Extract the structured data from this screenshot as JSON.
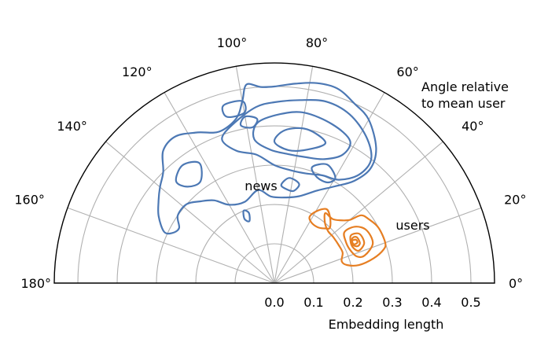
{
  "chart_data": {
    "type": "polar-contour",
    "angle_unit": "degrees",
    "angle_range": [
      0,
      180
    ],
    "radial_range": [
      0,
      0.56
    ],
    "angle_ticks": [
      0,
      20,
      40,
      60,
      80,
      100,
      120,
      140,
      160,
      180
    ],
    "angle_tick_labels": [
      "0°",
      "20°",
      "40°",
      "60°",
      "80°",
      "100°",
      "120°",
      "140°",
      "160°",
      "180°"
    ],
    "radial_ticks": [
      0.0,
      0.1,
      0.2,
      0.3,
      0.4,
      0.5
    ],
    "radial_tick_labels": [
      "0.0",
      "0.1",
      "0.2",
      "0.3",
      "0.4",
      "0.5"
    ],
    "angle_axis_label": "Angle relative\nto mean user",
    "radial_axis_label": "Embedding length",
    "grid": true,
    "series": [
      {
        "name": "news",
        "color": "#4c78b4",
        "contours": [
          [
            [
              0.48,
              60
            ],
            [
              0.5,
              66
            ],
            [
              0.52,
              72
            ],
            [
              0.52,
              78
            ],
            [
              0.51,
              84
            ],
            [
              0.5,
              90
            ],
            [
              0.5,
              94
            ],
            [
              0.51,
              98
            ],
            [
              0.47,
              100
            ],
            [
              0.43,
              103
            ],
            [
              0.41,
              110
            ],
            [
              0.43,
              117
            ],
            [
              0.45,
              124
            ],
            [
              0.44,
              130
            ],
            [
              0.4,
              135
            ],
            [
              0.38,
              140
            ],
            [
              0.36,
              145
            ],
            [
              0.34,
              150
            ],
            [
              0.31,
              155
            ],
            [
              0.29,
              154
            ],
            [
              0.28,
              150
            ],
            [
              0.3,
              145
            ],
            [
              0.3,
              138
            ],
            [
              0.28,
              132
            ],
            [
              0.26,
              126
            ],
            [
              0.23,
              120
            ],
            [
              0.22,
              110
            ],
            [
              0.24,
              100
            ],
            [
              0.22,
              92
            ],
            [
              0.22,
              82
            ],
            [
              0.23,
              74
            ],
            [
              0.26,
              65
            ],
            [
              0.29,
              58
            ],
            [
              0.33,
              52
            ],
            [
              0.38,
              50
            ],
            [
              0.43,
              53
            ],
            [
              0.48,
              60
            ]
          ],
          [
            [
              0.44,
              58
            ],
            [
              0.47,
              66
            ],
            [
              0.48,
              74
            ],
            [
              0.47,
              82
            ],
            [
              0.46,
              90
            ],
            [
              0.45,
              96
            ],
            [
              0.42,
              104
            ],
            [
              0.39,
              110
            ],
            [
              0.35,
              106
            ],
            [
              0.33,
              98
            ],
            [
              0.3,
              90
            ],
            [
              0.29,
              82
            ],
            [
              0.29,
              74
            ],
            [
              0.3,
              66
            ],
            [
              0.31,
              58
            ],
            [
              0.35,
              52
            ],
            [
              0.4,
              52
            ],
            [
              0.44,
              58
            ]
          ],
          [
            [
              0.41,
              62
            ],
            [
              0.43,
              70
            ],
            [
              0.44,
              80
            ],
            [
              0.43,
              88
            ],
            [
              0.41,
              96
            ],
            [
              0.37,
              98
            ],
            [
              0.34,
              92
            ],
            [
              0.33,
              84
            ],
            [
              0.33,
              76
            ],
            [
              0.34,
              68
            ],
            [
              0.37,
              62
            ],
            [
              0.41,
              62
            ]
          ],
          [
            [
              0.38,
              70
            ],
            [
              0.4,
              78
            ],
            [
              0.39,
              86
            ],
            [
              0.36,
              90
            ],
            [
              0.34,
              84
            ],
            [
              0.35,
              76
            ],
            [
              0.38,
              70
            ]
          ],
          [
            [
              0.47,
              100
            ],
            [
              0.47,
              106
            ],
            [
              0.44,
              106
            ],
            [
              0.44,
              100
            ],
            [
              0.47,
              100
            ]
          ],
          [
            [
              0.42,
              96
            ],
            [
              0.43,
              100
            ],
            [
              0.41,
              102
            ],
            [
              0.4,
              98
            ],
            [
              0.42,
              96
            ]
          ],
          [
            [
              0.31,
              60
            ],
            [
              0.33,
              66
            ],
            [
              0.31,
              72
            ],
            [
              0.29,
              68
            ],
            [
              0.29,
              62
            ],
            [
              0.31,
              60
            ]
          ],
          [
            [
              0.26,
              76
            ],
            [
              0.27,
              82
            ],
            [
              0.25,
              86
            ],
            [
              0.24,
              82
            ],
            [
              0.24,
              78
            ],
            [
              0.26,
              76
            ]
          ],
          [
            [
              0.36,
              122
            ],
            [
              0.38,
              128
            ],
            [
              0.36,
              134
            ],
            [
              0.33,
              132
            ],
            [
              0.32,
              126
            ],
            [
              0.36,
              122
            ]
          ],
          [
            [
              0.19,
              110
            ],
            [
              0.2,
              113
            ],
            [
              0.18,
              115
            ],
            [
              0.17,
              112
            ],
            [
              0.19,
              110
            ]
          ]
        ]
      },
      {
        "name": "users",
        "color": "#e67e22",
        "contours": [
          [
            [
              0.2,
              45
            ],
            [
              0.22,
              50
            ],
            [
              0.23,
              55
            ],
            [
              0.21,
              60
            ],
            [
              0.19,
              62
            ],
            [
              0.18,
              58
            ],
            [
              0.18,
              52
            ],
            [
              0.19,
              47
            ],
            [
              0.2,
              45
            ]
          ],
          [
            [
              0.3,
              20
            ],
            [
              0.3,
              28
            ],
            [
              0.29,
              34
            ],
            [
              0.28,
              38
            ],
            [
              0.25,
              40
            ],
            [
              0.23,
              44
            ],
            [
              0.22,
              48
            ],
            [
              0.22,
              54
            ],
            [
              0.2,
              50
            ],
            [
              0.19,
              44
            ],
            [
              0.19,
              38
            ],
            [
              0.19,
              30
            ],
            [
              0.19,
              24
            ],
            [
              0.18,
              18
            ],
            [
              0.19,
              14
            ],
            [
              0.22,
              12
            ],
            [
              0.26,
              14
            ],
            [
              0.29,
              17
            ],
            [
              0.3,
              20
            ]
          ],
          [
            [
              0.27,
              22
            ],
            [
              0.27,
              30
            ],
            [
              0.25,
              35
            ],
            [
              0.22,
              36
            ],
            [
              0.21,
              30
            ],
            [
              0.21,
              24
            ],
            [
              0.22,
              18
            ],
            [
              0.24,
              17
            ],
            [
              0.27,
              22
            ]
          ],
          [
            [
              0.25,
              24
            ],
            [
              0.25,
              30
            ],
            [
              0.23,
              32
            ],
            [
              0.22,
              28
            ],
            [
              0.22,
              24
            ],
            [
              0.23,
              21
            ],
            [
              0.25,
              24
            ]
          ],
          [
            [
              0.24,
              25
            ],
            [
              0.24,
              29
            ],
            [
              0.23,
              30
            ],
            [
              0.22,
              27
            ],
            [
              0.23,
              24
            ],
            [
              0.24,
              25
            ]
          ],
          [
            [
              0.235,
              26
            ],
            [
              0.235,
              28
            ],
            [
              0.225,
              28.5
            ],
            [
              0.225,
              26
            ],
            [
              0.235,
              26
            ]
          ]
        ]
      }
    ],
    "annotations": [
      "news",
      "users"
    ]
  }
}
